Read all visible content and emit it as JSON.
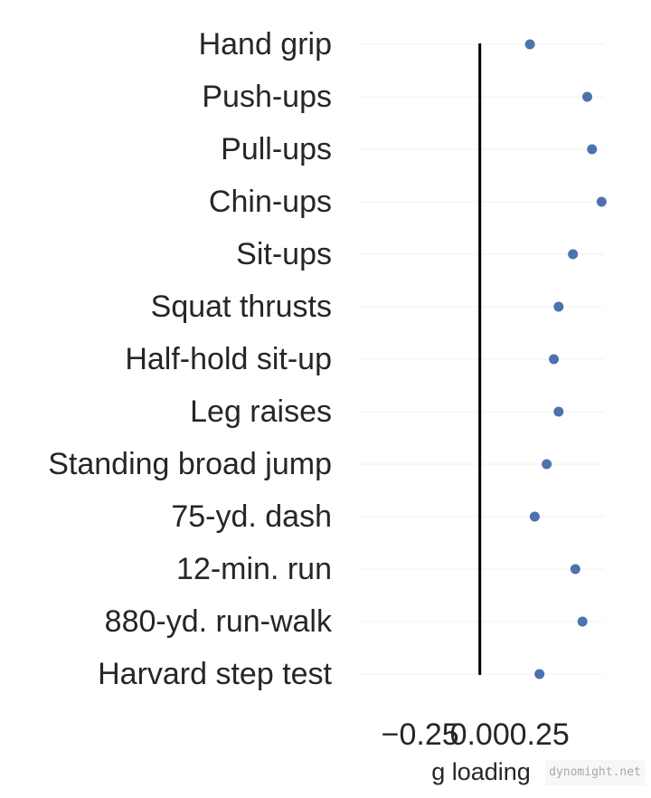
{
  "chart_data": {
    "type": "scatter",
    "title": "",
    "xlabel": "g loading",
    "ylabel": "",
    "categories": [
      "Hand grip",
      "Push-ups",
      "Pull-ups",
      "Chin-ups",
      "Sit-ups",
      "Squat thrusts",
      "Half-hold sit-up",
      "Leg raises",
      "Standing broad jump",
      "75-yd. dash",
      "12-min. run",
      "880-yd. run-walk",
      "Harvard step test"
    ],
    "values": [
      0.21,
      0.45,
      0.47,
      0.51,
      0.39,
      0.33,
      0.31,
      0.33,
      0.28,
      0.23,
      0.4,
      0.43,
      0.25
    ],
    "xlim": [
      -0.51,
      0.52
    ],
    "xticks": [
      -0.25,
      0.0,
      0.25
    ],
    "xtick_labels": [
      "−0.25",
      "0.00",
      "0.25"
    ],
    "reference_line": 0,
    "point_color": "#4c72b0",
    "grid": true,
    "grid_color": "#f1f1f1"
  },
  "watermark": {
    "text": "dynomight.net"
  }
}
